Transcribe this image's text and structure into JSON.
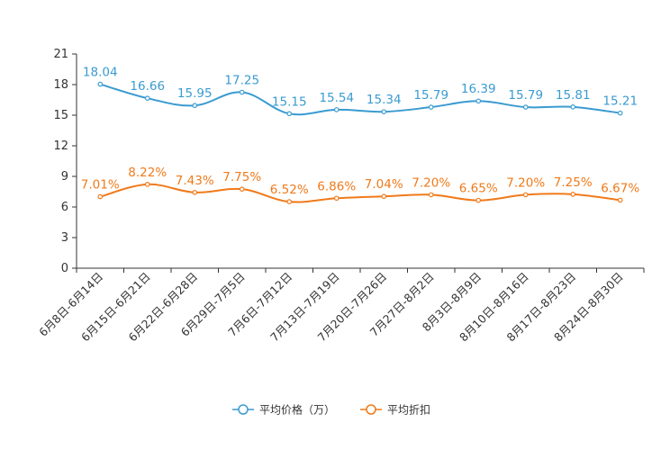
{
  "chart_data": {
    "type": "line",
    "title": "",
    "xlabel": "",
    "ylabel": "",
    "ylim": [
      0,
      21
    ],
    "yticks": [
      "0",
      "3",
      "6",
      "9",
      "12",
      "15",
      "18",
      "21"
    ],
    "grid": false,
    "legend_position": "bottom-center",
    "categories": [
      "6月8日-6月14日",
      "6月15日-6月21日",
      "6月22日-6月28日",
      "6月29日-7月5日",
      "7月6日-7月12日",
      "7月13日-7月19日",
      "7月20日-7月26日",
      "7月27日-8月2日",
      "8月3日-8月9日",
      "8月10日-8月16日",
      "8月17日-8月23日",
      "8月24日-8月30日"
    ],
    "series": [
      {
        "name": "平均价格（万）",
        "color": "#3a9bd1",
        "values": [
          18.04,
          16.66,
          15.95,
          17.25,
          15.15,
          15.54,
          15.34,
          15.79,
          16.39,
          15.79,
          15.81,
          15.21
        ],
        "labels": [
          "18.04",
          "16.66",
          "15.95",
          "17.25",
          "15.15",
          "15.54",
          "15.34",
          "15.79",
          "16.39",
          "15.79",
          "15.81",
          "15.21"
        ]
      },
      {
        "name": "平均折扣",
        "color": "#f07a1a",
        "values": [
          7.01,
          8.22,
          7.43,
          7.75,
          6.52,
          6.86,
          7.04,
          7.2,
          6.65,
          7.2,
          7.25,
          6.67
        ],
        "labels": [
          "7.01%",
          "8.22%",
          "7.43%",
          "7.75%",
          "6.52%",
          "6.86%",
          "7.04%",
          "7.20%",
          "6.65%",
          "7.20%",
          "7.25%",
          "6.67%"
        ]
      }
    ]
  }
}
